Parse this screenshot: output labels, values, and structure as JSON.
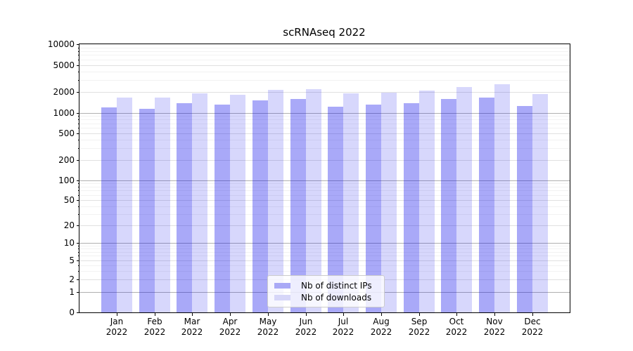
{
  "chart_data": {
    "type": "bar",
    "title": "scRNAseq 2022",
    "categories": [
      "Jan",
      "Feb",
      "Mar",
      "Apr",
      "May",
      "Jun",
      "Jul",
      "Aug",
      "Sep",
      "Oct",
      "Nov",
      "Dec"
    ],
    "x_tick_year": "2022",
    "series": [
      {
        "name": "Nb of distinct IPs",
        "values": [
          1200,
          1160,
          1370,
          1330,
          1530,
          1590,
          1220,
          1310,
          1380,
          1600,
          1660,
          1270
        ],
        "color": "rgba(8, 8, 235, 0.35)",
        "swatch_color": "#a9a9f6"
      },
      {
        "name": "Nb of downloads",
        "values": [
          1670,
          1650,
          1920,
          1840,
          2130,
          2200,
          1890,
          1970,
          2090,
          2380,
          2600,
          1870
        ],
        "color": "rgba(8, 8, 235, 0.16)",
        "swatch_color": "#d6d6f8"
      }
    ],
    "yscale": "symlog",
    "ylim": [
      0,
      10000
    ],
    "y_ticks": [
      0,
      1,
      2,
      5,
      10,
      20,
      50,
      100,
      200,
      500,
      1000,
      2000,
      5000,
      10000
    ],
    "y_major_ticks": [
      1,
      10,
      100,
      1000,
      10000
    ],
    "grid": true,
    "legend_position": "lower center"
  },
  "colors": {
    "grid_major": "#b0b0b0",
    "grid_labeled": "#e0e0e0",
    "grid_minor": "#f2f2f2",
    "spine": "#000000"
  }
}
